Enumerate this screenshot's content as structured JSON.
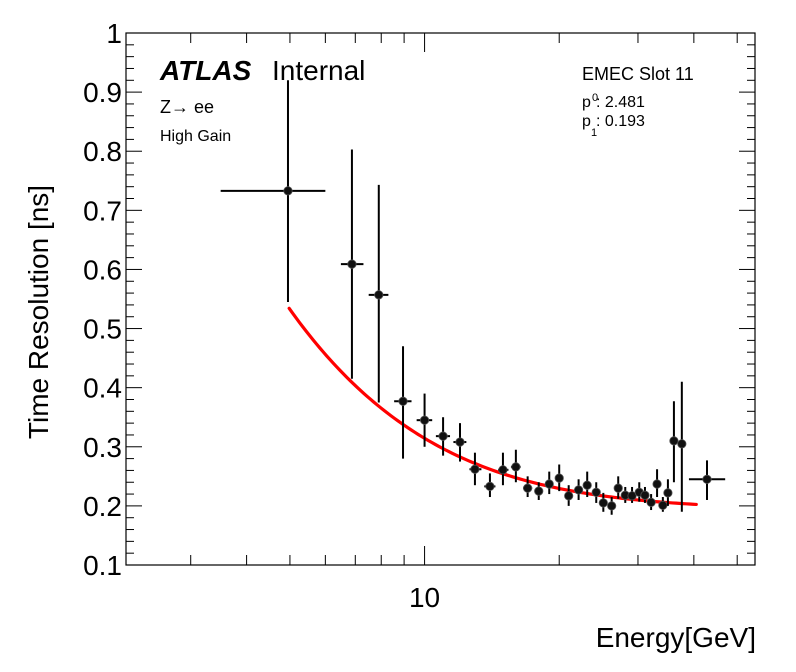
{
  "chart_data": {
    "type": "scatter",
    "title": "",
    "xlabel": "Energy[GeV]",
    "ylabel": "Time Resolution [ns]",
    "xscale": "log",
    "xlim": [
      2.15,
      54.8
    ],
    "ylim": [
      0.1,
      1.0
    ],
    "grid": false,
    "x_tick_labels": [
      {
        "value": 10,
        "label": "10"
      }
    ],
    "x_minor_ticks": [
      3,
      4,
      5,
      6,
      7,
      8,
      9,
      20,
      30,
      40,
      50
    ],
    "y_ticks": [
      {
        "value": 0.1,
        "label": "0.1"
      },
      {
        "value": 0.2,
        "label": "0.2"
      },
      {
        "value": 0.3,
        "label": "0.3"
      },
      {
        "value": 0.4,
        "label": "0.4"
      },
      {
        "value": 0.5,
        "label": "0.5"
      },
      {
        "value": 0.6,
        "label": "0.6"
      },
      {
        "value": 0.7,
        "label": "0.7"
      },
      {
        "value": 0.8,
        "label": "0.8"
      },
      {
        "value": 0.9,
        "label": "0.9"
      },
      {
        "value": 1.0,
        "label": "1"
      }
    ],
    "series": [
      {
        "name": "data",
        "color": "#000000",
        "points": [
          {
            "x": 4.95,
            "y": 0.733,
            "xlo": 3.5,
            "xhi": 6.0,
            "ylo": 0.545,
            "yhi": 0.92
          },
          {
            "x": 6.88,
            "y": 0.609,
            "xlo": 6.5,
            "xhi": 7.3,
            "ylo": 0.415,
            "yhi": 0.803
          },
          {
            "x": 7.9,
            "y": 0.557,
            "xlo": 7.5,
            "xhi": 8.3,
            "ylo": 0.375,
            "yhi": 0.743
          },
          {
            "x": 8.95,
            "y": 0.377,
            "xlo": 8.55,
            "xhi": 9.35,
            "ylo": 0.28,
            "yhi": 0.47
          },
          {
            "x": 10.0,
            "y": 0.345,
            "xlo": 9.6,
            "xhi": 10.4,
            "ylo": 0.3,
            "yhi": 0.39
          },
          {
            "x": 11.0,
            "y": 0.318,
            "xlo": 10.6,
            "xhi": 11.4,
            "ylo": 0.285,
            "yhi": 0.35
          },
          {
            "x": 12.0,
            "y": 0.308,
            "xlo": 11.6,
            "xhi": 12.4,
            "ylo": 0.275,
            "yhi": 0.34
          },
          {
            "x": 12.96,
            "y": 0.262,
            "xlo": 12.6,
            "xhi": 13.4,
            "ylo": 0.235,
            "yhi": 0.29
          },
          {
            "x": 14.0,
            "y": 0.233,
            "xlo": 13.6,
            "xhi": 14.4,
            "ylo": 0.215,
            "yhi": 0.255
          },
          {
            "x": 14.97,
            "y": 0.261,
            "xlo": 14.6,
            "xhi": 15.4,
            "ylo": 0.235,
            "yhi": 0.29
          },
          {
            "x": 16.0,
            "y": 0.266,
            "xlo": 15.6,
            "xhi": 16.4,
            "ylo": 0.24,
            "yhi": 0.295
          },
          {
            "x": 17.0,
            "y": 0.23,
            "xlo": 16.6,
            "xhi": 17.4,
            "ylo": 0.215,
            "yhi": 0.25
          },
          {
            "x": 18.0,
            "y": 0.225,
            "xlo": 17.6,
            "xhi": 18.4,
            "ylo": 0.21,
            "yhi": 0.24
          },
          {
            "x": 19.0,
            "y": 0.237,
            "xlo": 18.6,
            "xhi": 19.4,
            "ylo": 0.22,
            "yhi": 0.258
          },
          {
            "x": 20.0,
            "y": 0.247,
            "xlo": 19.6,
            "xhi": 20.4,
            "ylo": 0.225,
            "yhi": 0.27
          },
          {
            "x": 21.0,
            "y": 0.217,
            "xlo": 20.6,
            "xhi": 21.4,
            "ylo": 0.2,
            "yhi": 0.235
          },
          {
            "x": 22.1,
            "y": 0.227,
            "xlo": 21.6,
            "xhi": 22.6,
            "ylo": 0.21,
            "yhi": 0.245
          },
          {
            "x": 23.1,
            "y": 0.235,
            "xlo": 22.6,
            "xhi": 23.6,
            "ylo": 0.215,
            "yhi": 0.258
          },
          {
            "x": 24.2,
            "y": 0.223,
            "xlo": 23.7,
            "xhi": 24.7,
            "ylo": 0.205,
            "yhi": 0.24
          },
          {
            "x": 25.1,
            "y": 0.205,
            "xlo": 24.7,
            "xhi": 25.6,
            "ylo": 0.19,
            "yhi": 0.222
          },
          {
            "x": 26.2,
            "y": 0.2,
            "xlo": 25.7,
            "xhi": 26.7,
            "ylo": 0.185,
            "yhi": 0.215
          },
          {
            "x": 27.1,
            "y": 0.23,
            "xlo": 26.7,
            "xhi": 27.6,
            "ylo": 0.212,
            "yhi": 0.25
          },
          {
            "x": 28.1,
            "y": 0.218,
            "xlo": 27.6,
            "xhi": 28.6,
            "ylo": 0.205,
            "yhi": 0.232
          },
          {
            "x": 29.1,
            "y": 0.217,
            "xlo": 28.6,
            "xhi": 29.6,
            "ylo": 0.205,
            "yhi": 0.232
          },
          {
            "x": 30.2,
            "y": 0.223,
            "xlo": 29.7,
            "xhi": 30.7,
            "ylo": 0.207,
            "yhi": 0.24
          },
          {
            "x": 31.1,
            "y": 0.218,
            "xlo": 30.7,
            "xhi": 31.6,
            "ylo": 0.205,
            "yhi": 0.232
          },
          {
            "x": 32.1,
            "y": 0.206,
            "xlo": 31.6,
            "xhi": 32.6,
            "ylo": 0.193,
            "yhi": 0.22
          },
          {
            "x": 33.1,
            "y": 0.237,
            "xlo": 32.6,
            "xhi": 33.6,
            "ylo": 0.215,
            "yhi": 0.262
          },
          {
            "x": 34.1,
            "y": 0.201,
            "xlo": 33.6,
            "xhi": 34.6,
            "ylo": 0.19,
            "yhi": 0.215
          },
          {
            "x": 35.0,
            "y": 0.222,
            "xlo": 34.6,
            "xhi": 35.5,
            "ylo": 0.2,
            "yhi": 0.245
          },
          {
            "x": 36.1,
            "y": 0.31,
            "xlo": 35.6,
            "xhi": 36.6,
            "ylo": 0.24,
            "yhi": 0.377
          },
          {
            "x": 37.6,
            "y": 0.305,
            "xlo": 37.0,
            "xhi": 38.2,
            "ylo": 0.19,
            "yhi": 0.41
          },
          {
            "x": 42.8,
            "y": 0.245,
            "xlo": 39.0,
            "xhi": 47.0,
            "ylo": 0.21,
            "yhi": 0.277
          }
        ]
      },
      {
        "name": "fit",
        "type": "line",
        "color": "#ff0000",
        "formula": "sqrt((p0/E)^2 + p1^2)",
        "x_range": [
          4.98,
          40.5
        ],
        "params": {
          "p0": 2.481,
          "p1": 0.193
        }
      }
    ],
    "annotations": [
      {
        "text": "ATLAS",
        "style": "bold-italic"
      },
      {
        "text": "Internal"
      },
      {
        "text": "Z→ ee"
      },
      {
        "text": "High Gain"
      },
      {
        "text": "EMEC Slot 11"
      },
      {
        "text": "p0: 2.481",
        "color": "#ff0000"
      },
      {
        "text": "p1: 0.193",
        "color": "#ff0000"
      }
    ]
  },
  "labels": {
    "atlas": "ATLAS",
    "internal": "Internal",
    "process": "Z→ ee",
    "gain": "High Gain",
    "slot": "EMEC Slot 11",
    "p0_name": "p",
    "p0_sub": "0",
    "p0_value": ": 2.481",
    "p1_name": "p",
    "p1_sub": "1",
    "p1_value": ": 0.193"
  }
}
